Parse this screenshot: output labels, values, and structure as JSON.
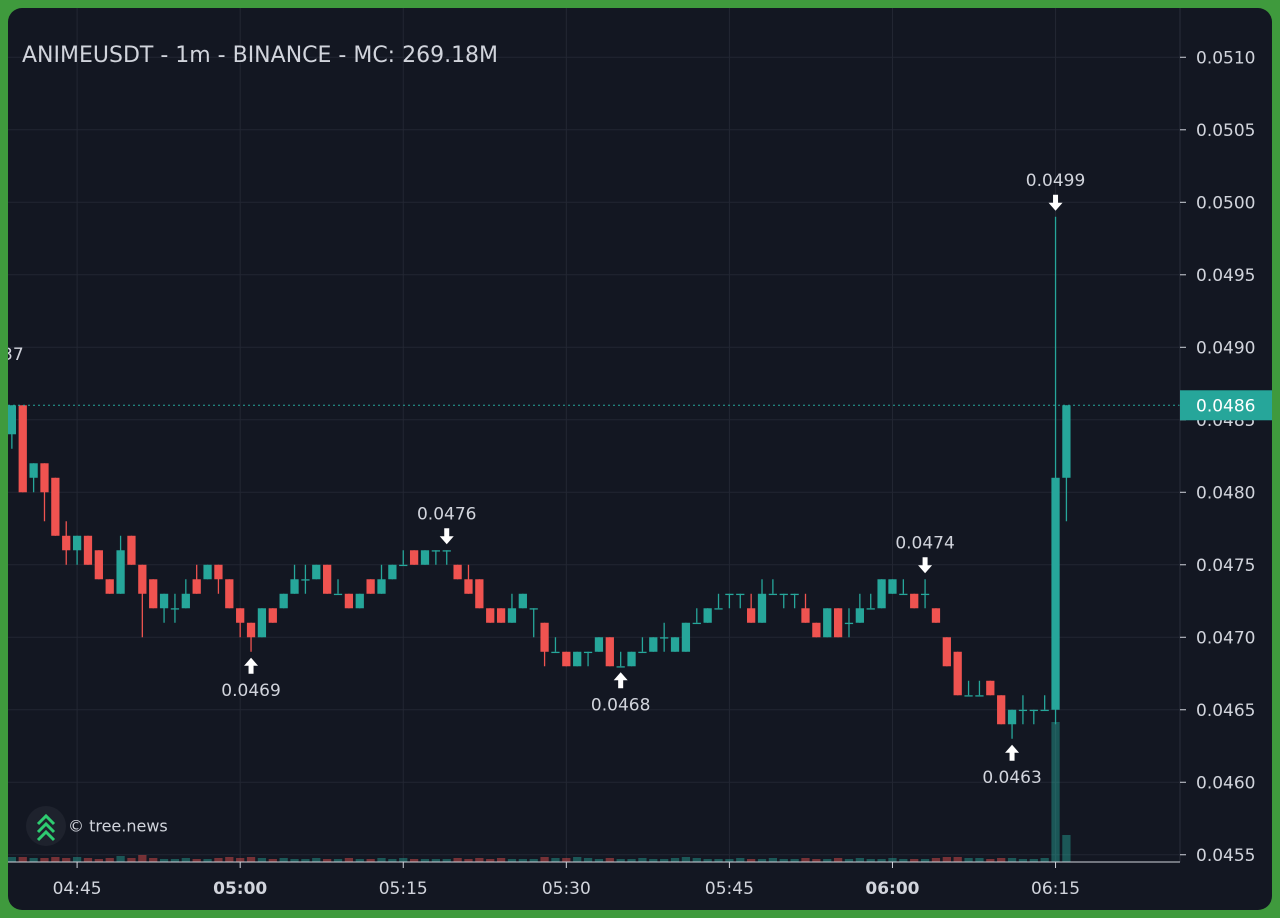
{
  "chart_data": {
    "type": "candlestick",
    "title": "ANIMEUSDT - 1m - BINANCE - MC: 269.18M",
    "watermark": "© tree.news",
    "cropped_label": "37",
    "x": [
      "04:39",
      "04:40",
      "04:41",
      "04:42",
      "04:43",
      "04:44",
      "04:45",
      "04:46",
      "04:47",
      "04:48",
      "04:49",
      "04:50",
      "04:51",
      "04:52",
      "04:53",
      "04:54",
      "04:55",
      "04:56",
      "04:57",
      "04:58",
      "04:59",
      "05:00",
      "05:01",
      "05:02",
      "05:03",
      "05:04",
      "05:05",
      "05:06",
      "05:07",
      "05:08",
      "05:09",
      "05:10",
      "05:11",
      "05:12",
      "05:13",
      "05:14",
      "05:15",
      "05:16",
      "05:17",
      "05:18",
      "05:19",
      "05:20",
      "05:21",
      "05:22",
      "05:23",
      "05:24",
      "05:25",
      "05:26",
      "05:27",
      "05:28",
      "05:29",
      "05:30",
      "05:31",
      "05:32",
      "05:33",
      "05:34",
      "05:35",
      "05:36",
      "05:37",
      "05:38",
      "05:39",
      "05:40",
      "05:41",
      "05:42",
      "05:43",
      "05:44",
      "05:45",
      "05:46",
      "05:47",
      "05:48",
      "05:49",
      "05:50",
      "05:51",
      "05:52",
      "05:53",
      "05:54",
      "05:55",
      "05:56",
      "05:57",
      "05:58",
      "05:59",
      "06:00",
      "06:01",
      "06:02",
      "06:03",
      "06:04",
      "06:05",
      "06:06",
      "06:07",
      "06:08",
      "06:09",
      "06:10",
      "06:11",
      "06:12",
      "06:13",
      "06:14",
      "06:15",
      "06:16"
    ],
    "open": [
      0.0484,
      0.0486,
      0.0481,
      0.0482,
      0.0481,
      0.0477,
      0.0476,
      0.0477,
      0.0476,
      0.0474,
      0.0473,
      0.0477,
      0.0475,
      0.0474,
      0.0472,
      0.0472,
      0.0472,
      0.0474,
      0.0474,
      0.0475,
      0.0474,
      0.0472,
      0.0471,
      0.047,
      0.0472,
      0.0472,
      0.0473,
      0.0474,
      0.0474,
      0.0475,
      0.0473,
      0.0473,
      0.0472,
      0.0474,
      0.0473,
      0.0474,
      0.0475,
      0.0476,
      0.0475,
      0.0476,
      0.0476,
      0.0475,
      0.0474,
      0.0474,
      0.0472,
      0.0472,
      0.0471,
      0.0472,
      0.0472,
      0.0471,
      0.0469,
      0.0469,
      0.0468,
      0.0469,
      0.0469,
      0.047,
      0.0468,
      0.0468,
      0.0469,
      0.0469,
      0.047,
      0.0469,
      0.0469,
      0.0471,
      0.0471,
      0.0472,
      0.0473,
      0.0473,
      0.0472,
      0.0471,
      0.0473,
      0.0473,
      0.0473,
      0.0472,
      0.0471,
      0.047,
      0.0472,
      0.0471,
      0.0471,
      0.0472,
      0.0472,
      0.0473,
      0.0473,
      0.0473,
      0.0473,
      0.0472,
      0.047,
      0.0469,
      0.0466,
      0.0466,
      0.0467,
      0.0466,
      0.0464,
      0.0465,
      0.0465,
      0.0465,
      0.0465,
      0.0481
    ],
    "high": [
      0.0486,
      0.0486,
      0.0482,
      0.0482,
      0.0481,
      0.0478,
      0.0477,
      0.0477,
      0.0476,
      0.0474,
      0.0477,
      0.0477,
      0.0475,
      0.0474,
      0.0473,
      0.0473,
      0.0474,
      0.0475,
      0.0475,
      0.0475,
      0.0474,
      0.0472,
      0.0471,
      0.0472,
      0.0472,
      0.0473,
      0.0475,
      0.0475,
      0.0475,
      0.0475,
      0.0474,
      0.0473,
      0.0473,
      0.0474,
      0.0475,
      0.0475,
      0.0476,
      0.0476,
      0.0476,
      0.0476,
      0.0476,
      0.0475,
      0.0475,
      0.0474,
      0.0472,
      0.0472,
      0.0473,
      0.0473,
      0.0472,
      0.0471,
      0.047,
      0.0469,
      0.0469,
      0.0469,
      0.047,
      0.047,
      0.0469,
      0.0469,
      0.047,
      0.047,
      0.0471,
      0.047,
      0.0471,
      0.0472,
      0.0472,
      0.0473,
      0.0473,
      0.0473,
      0.0473,
      0.0474,
      0.0474,
      0.0473,
      0.0473,
      0.0473,
      0.0471,
      0.0472,
      0.0472,
      0.0472,
      0.0473,
      0.0473,
      0.0474,
      0.0474,
      0.0474,
      0.0473,
      0.0474,
      0.0472,
      0.047,
      0.0469,
      0.0467,
      0.0467,
      0.0467,
      0.0466,
      0.0465,
      0.0466,
      0.0465,
      0.0466,
      0.0499,
      0.0486
    ],
    "low": [
      0.0483,
      0.048,
      0.048,
      0.0478,
      0.0477,
      0.0475,
      0.0475,
      0.0475,
      0.0474,
      0.0473,
      0.0473,
      0.0475,
      0.047,
      0.0472,
      0.0471,
      0.0471,
      0.0472,
      0.0473,
      0.0474,
      0.0473,
      0.0472,
      0.047,
      0.0469,
      0.047,
      0.0471,
      0.0472,
      0.0473,
      0.0473,
      0.0474,
      0.0473,
      0.0473,
      0.0472,
      0.0472,
      0.0473,
      0.0473,
      0.0474,
      0.0475,
      0.0475,
      0.0475,
      0.0475,
      0.0475,
      0.0474,
      0.0473,
      0.0472,
      0.0471,
      0.0471,
      0.0471,
      0.0472,
      0.047,
      0.0468,
      0.0469,
      0.0468,
      0.0468,
      0.0468,
      0.0469,
      0.0468,
      0.0468,
      0.0468,
      0.0469,
      0.0469,
      0.0469,
      0.0469,
      0.0469,
      0.0471,
      0.0471,
      0.0472,
      0.0472,
      0.0472,
      0.0471,
      0.0471,
      0.0473,
      0.0472,
      0.0472,
      0.0471,
      0.047,
      0.047,
      0.047,
      0.047,
      0.0471,
      0.0472,
      0.0472,
      0.0473,
      0.0473,
      0.0472,
      0.0472,
      0.0471,
      0.0468,
      0.0466,
      0.0466,
      0.0466,
      0.0466,
      0.0464,
      0.0463,
      0.0464,
      0.0464,
      0.0465,
      0.0464,
      0.0478
    ],
    "close": [
      0.0486,
      0.048,
      0.0482,
      0.048,
      0.0477,
      0.0476,
      0.0477,
      0.0475,
      0.0474,
      0.0473,
      0.0476,
      0.0475,
      0.0473,
      0.0472,
      0.0473,
      0.0472,
      0.0473,
      0.0473,
      0.0475,
      0.0474,
      0.0472,
      0.0471,
      0.047,
      0.0472,
      0.0471,
      0.0473,
      0.0474,
      0.0474,
      0.0475,
      0.0473,
      0.0473,
      0.0472,
      0.0473,
      0.0473,
      0.0474,
      0.0475,
      0.0475,
      0.0475,
      0.0476,
      0.0476,
      0.0476,
      0.0474,
      0.0473,
      0.0472,
      0.0471,
      0.0471,
      0.0472,
      0.0473,
      0.0472,
      0.0469,
      0.0469,
      0.0468,
      0.0469,
      0.0469,
      0.047,
      0.0468,
      0.0468,
      0.0469,
      0.0469,
      0.047,
      0.047,
      0.047,
      0.0471,
      0.0471,
      0.0472,
      0.0472,
      0.0473,
      0.0473,
      0.0471,
      0.0473,
      0.0473,
      0.0473,
      0.0473,
      0.0471,
      0.047,
      0.0472,
      0.047,
      0.0471,
      0.0472,
      0.0472,
      0.0474,
      0.0474,
      0.0473,
      0.0472,
      0.0473,
      0.0471,
      0.0468,
      0.0466,
      0.0466,
      0.0466,
      0.0466,
      0.0464,
      0.0465,
      0.0465,
      0.0465,
      0.0465,
      0.0481,
      0.0486
    ],
    "volume": [
      5,
      5,
      4,
      4,
      5,
      4,
      5,
      4,
      3,
      4,
      6,
      4,
      7,
      4,
      3,
      3,
      4,
      3,
      3,
      4,
      5,
      4,
      5,
      4,
      3,
      4,
      3,
      3,
      4,
      3,
      3,
      4,
      3,
      3,
      4,
      3,
      4,
      3,
      3,
      3,
      3,
      4,
      3,
      4,
      3,
      4,
      3,
      3,
      3,
      5,
      4,
      4,
      5,
      4,
      3,
      4,
      3,
      3,
      4,
      3,
      3,
      4,
      5,
      4,
      3,
      3,
      3,
      4,
      3,
      3,
      4,
      3,
      3,
      4,
      3,
      3,
      4,
      3,
      4,
      3,
      3,
      4,
      3,
      3,
      3,
      4,
      5,
      5,
      4,
      4,
      3,
      4,
      4,
      3,
      3,
      4,
      140,
      27
    ],
    "colors": {
      "up": "#26a69a",
      "down": "#ef5350"
    },
    "xlim": [
      "04:38",
      "06:27"
    ],
    "xticks": [
      "04:45",
      "05:00",
      "05:15",
      "05:30",
      "05:45",
      "06:00",
      "06:15"
    ],
    "ylim": [
      0.04545,
      0.05134
    ],
    "yticks": [
      {
        "value": 0.0455,
        "label": "0.0455"
      },
      {
        "value": 0.046,
        "label": "0.0460"
      },
      {
        "value": 0.0465,
        "label": "0.0465"
      },
      {
        "value": 0.047,
        "label": "0.0470"
      },
      {
        "value": 0.0475,
        "label": "0.0475"
      },
      {
        "value": 0.048,
        "label": "0.0480"
      },
      {
        "value": 0.0485,
        "label": "0.0485"
      },
      {
        "value": 0.049,
        "label": "0.0490"
      },
      {
        "value": 0.0495,
        "label": "0.0495"
      },
      {
        "value": 0.05,
        "label": "0.0500"
      },
      {
        "value": 0.0505,
        "label": "0.0505"
      },
      {
        "value": 0.051,
        "label": "0.0510"
      }
    ],
    "last_price": {
      "value": 0.0486,
      "label": "0.0486"
    },
    "annotations": [
      {
        "x": "05:01",
        "value": 0.0469,
        "side": "low"
      },
      {
        "x": "05:19",
        "value": 0.0476,
        "side": "high"
      },
      {
        "x": "05:35",
        "value": 0.0468,
        "side": "low"
      },
      {
        "x": "06:03",
        "value": 0.0474,
        "side": "high"
      },
      {
        "x": "06:11",
        "value": 0.0463,
        "side": "low"
      },
      {
        "x": "06:15",
        "value": 0.0499,
        "side": "high"
      }
    ],
    "grid": true
  }
}
